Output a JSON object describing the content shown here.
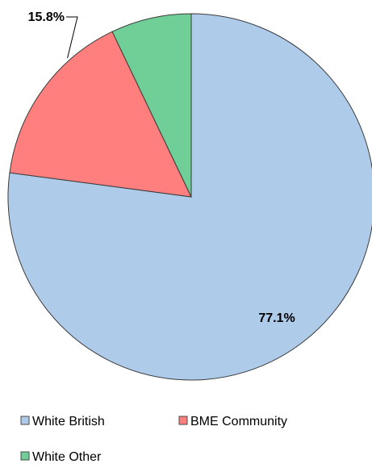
{
  "chart_data": {
    "type": "pie",
    "title": "",
    "start_angle_deg": 0,
    "direction": "clockwise",
    "slices": [
      {
        "label": "White British",
        "value": 77.1,
        "value_label": "77.1%",
        "color": "#afcbea"
      },
      {
        "label": "BME Community",
        "value": 15.8,
        "value_label": "15.8%",
        "color": "#ff7f7f"
      },
      {
        "label": "White Other",
        "value": 7.1,
        "value_label": "",
        "color": "#6fcf97"
      }
    ],
    "legend": {
      "position": "bottom",
      "entries": [
        {
          "label": "White British",
          "color": "#afcbea"
        },
        {
          "label": "BME Community",
          "color": "#ff7f7f"
        },
        {
          "label": "White Other",
          "color": "#6fcf97"
        }
      ]
    }
  }
}
